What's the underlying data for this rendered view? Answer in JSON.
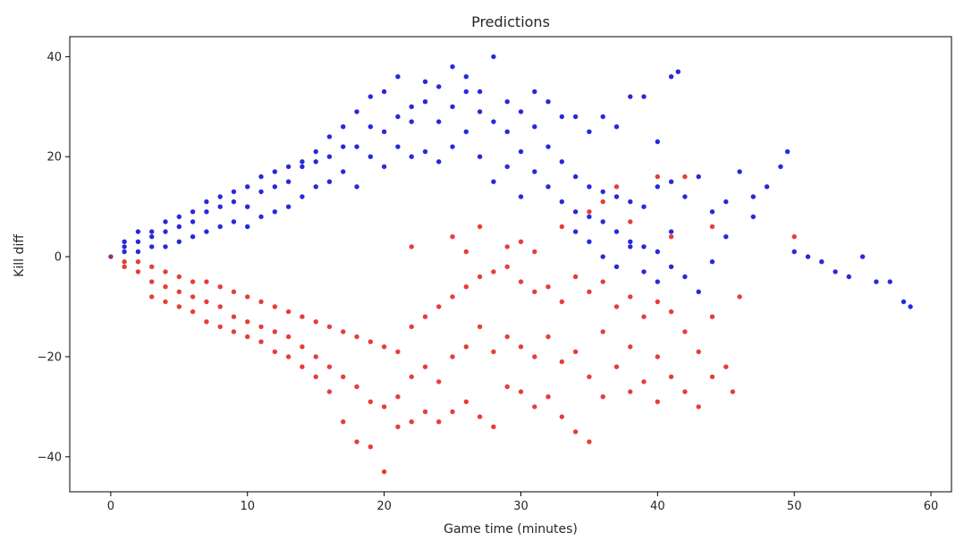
{
  "chart_data": {
    "type": "scatter",
    "title": "Predictions",
    "xlabel": "Game time (minutes)",
    "ylabel": "Kill diff",
    "xlim": [
      -3,
      61.5
    ],
    "ylim": [
      -47,
      44
    ],
    "xticks": [
      0,
      10,
      20,
      30,
      40,
      50,
      60
    ],
    "xtick_labels": [
      "0",
      "10",
      "20",
      "30",
      "40",
      "50",
      "60"
    ],
    "yticks": [
      -40,
      -20,
      0,
      20,
      40
    ],
    "ytick_labels": [
      "−40",
      "−20",
      "0",
      "20",
      "40"
    ],
    "grid": false,
    "legend": "none",
    "colors": {
      "positive": "#0a0ad6",
      "negative": "#e2231a",
      "origin": "#7a1a6a"
    },
    "marker_style": "filled circle, semi-transparent overlap",
    "series": [
      {
        "color": "#0a0ad6",
        "points": [
          [
            1,
            1
          ],
          [
            1,
            2
          ],
          [
            1,
            3
          ],
          [
            2,
            1
          ],
          [
            2,
            3
          ],
          [
            2,
            5
          ],
          [
            3,
            2
          ],
          [
            3,
            4
          ],
          [
            3,
            5
          ],
          [
            4,
            2
          ],
          [
            4,
            5
          ],
          [
            4,
            7
          ],
          [
            5,
            3
          ],
          [
            5,
            6
          ],
          [
            5,
            8
          ],
          [
            6,
            4
          ],
          [
            6,
            7
          ],
          [
            6,
            9
          ],
          [
            7,
            5
          ],
          [
            7,
            9
          ],
          [
            7,
            11
          ],
          [
            8,
            6
          ],
          [
            8,
            10
          ],
          [
            8,
            12
          ],
          [
            9,
            7
          ],
          [
            9,
            11
          ],
          [
            9,
            13
          ],
          [
            10,
            6
          ],
          [
            10,
            10
          ],
          [
            10,
            14
          ],
          [
            11,
            8
          ],
          [
            11,
            13
          ],
          [
            11,
            16
          ],
          [
            12,
            9
          ],
          [
            12,
            14
          ],
          [
            12,
            17
          ],
          [
            13,
            10
          ],
          [
            13,
            15
          ],
          [
            13,
            18
          ],
          [
            14,
            12
          ],
          [
            14,
            18
          ],
          [
            14,
            19
          ],
          [
            15,
            14
          ],
          [
            15,
            19
          ],
          [
            15,
            21
          ],
          [
            16,
            15
          ],
          [
            16,
            20
          ],
          [
            16,
            24
          ],
          [
            17,
            17
          ],
          [
            17,
            22
          ],
          [
            17,
            26
          ],
          [
            18,
            14
          ],
          [
            18,
            22
          ],
          [
            18,
            29
          ],
          [
            19,
            20
          ],
          [
            19,
            26
          ],
          [
            19,
            32
          ],
          [
            20,
            18
          ],
          [
            20,
            25
          ],
          [
            20,
            33
          ],
          [
            21,
            22
          ],
          [
            21,
            28
          ],
          [
            21,
            36
          ],
          [
            22,
            20
          ],
          [
            22,
            27
          ],
          [
            22,
            30
          ],
          [
            23,
            21
          ],
          [
            23,
            31
          ],
          [
            23,
            35
          ],
          [
            24,
            19
          ],
          [
            24,
            27
          ],
          [
            24,
            34
          ],
          [
            25,
            22
          ],
          [
            25,
            30
          ],
          [
            25,
            38
          ],
          [
            26,
            25
          ],
          [
            26,
            33
          ],
          [
            26,
            36
          ],
          [
            27,
            20
          ],
          [
            27,
            29
          ],
          [
            27,
            33
          ],
          [
            28,
            15
          ],
          [
            28,
            27
          ],
          [
            28,
            40
          ],
          [
            29,
            18
          ],
          [
            29,
            25
          ],
          [
            29,
            31
          ],
          [
            30,
            12
          ],
          [
            30,
            21
          ],
          [
            30,
            29
          ],
          [
            31,
            17
          ],
          [
            31,
            26
          ],
          [
            31,
            33
          ],
          [
            32,
            14
          ],
          [
            32,
            22
          ],
          [
            32,
            31
          ],
          [
            33,
            11
          ],
          [
            33,
            19
          ],
          [
            33,
            28
          ],
          [
            34,
            9
          ],
          [
            34,
            16
          ],
          [
            34,
            28
          ],
          [
            35,
            8
          ],
          [
            35,
            14
          ],
          [
            35,
            25
          ],
          [
            36,
            7
          ],
          [
            36,
            13
          ],
          [
            36,
            28
          ],
          [
            37,
            5
          ],
          [
            37,
            12
          ],
          [
            37,
            26
          ],
          [
            38,
            3
          ],
          [
            38,
            11
          ],
          [
            38,
            32
          ],
          [
            39,
            2
          ],
          [
            39,
            10
          ],
          [
            39,
            32
          ],
          [
            40,
            1
          ],
          [
            40,
            14
          ],
          [
            40,
            23
          ],
          [
            41,
            5
          ],
          [
            41,
            15
          ],
          [
            41,
            36
          ],
          [
            41.5,
            37
          ],
          [
            42,
            12
          ],
          [
            43,
            16
          ],
          [
            44,
            9
          ],
          [
            45,
            11
          ],
          [
            46,
            17
          ],
          [
            47,
            12
          ],
          [
            48,
            14
          ],
          [
            49,
            18
          ],
          [
            49.5,
            21
          ],
          [
            50,
            1
          ],
          [
            51,
            0
          ],
          [
            52,
            -1
          ],
          [
            53,
            -3
          ],
          [
            54,
            -4
          ],
          [
            55,
            0
          ],
          [
            56,
            -5
          ],
          [
            57,
            -5
          ],
          [
            58,
            -9
          ],
          [
            58.5,
            -10
          ],
          [
            47,
            8
          ],
          [
            45,
            4
          ],
          [
            44,
            -1
          ],
          [
            43,
            -7
          ],
          [
            42,
            -4
          ],
          [
            41,
            -2
          ],
          [
            40,
            -5
          ],
          [
            39,
            -3
          ],
          [
            38,
            2
          ],
          [
            37,
            -2
          ],
          [
            36,
            0
          ],
          [
            35,
            3
          ],
          [
            34,
            5
          ]
        ]
      },
      {
        "color": "#e2231a",
        "points": [
          [
            1,
            -1
          ],
          [
            1,
            -2
          ],
          [
            2,
            -1
          ],
          [
            2,
            -3
          ],
          [
            3,
            -2
          ],
          [
            3,
            -5
          ],
          [
            3,
            -8
          ],
          [
            4,
            -3
          ],
          [
            4,
            -6
          ],
          [
            4,
            -9
          ],
          [
            5,
            -4
          ],
          [
            5,
            -7
          ],
          [
            5,
            -10
          ],
          [
            6,
            -5
          ],
          [
            6,
            -8
          ],
          [
            6,
            -11
          ],
          [
            7,
            -5
          ],
          [
            7,
            -9
          ],
          [
            7,
            -13
          ],
          [
            8,
            -6
          ],
          [
            8,
            -10
          ],
          [
            8,
            -14
          ],
          [
            9,
            -7
          ],
          [
            9,
            -12
          ],
          [
            9,
            -15
          ],
          [
            10,
            -8
          ],
          [
            10,
            -13
          ],
          [
            10,
            -16
          ],
          [
            11,
            -9
          ],
          [
            11,
            -14
          ],
          [
            11,
            -17
          ],
          [
            12,
            -10
          ],
          [
            12,
            -15
          ],
          [
            12,
            -19
          ],
          [
            13,
            -11
          ],
          [
            13,
            -16
          ],
          [
            13,
            -20
          ],
          [
            14,
            -12
          ],
          [
            14,
            -18
          ],
          [
            14,
            -22
          ],
          [
            15,
            -13
          ],
          [
            15,
            -20
          ],
          [
            15,
            -24
          ],
          [
            16,
            -14
          ],
          [
            16,
            -22
          ],
          [
            16,
            -27
          ],
          [
            17,
            -15
          ],
          [
            17,
            -24
          ],
          [
            17,
            -33
          ],
          [
            18,
            -16
          ],
          [
            18,
            -26
          ],
          [
            18,
            -37
          ],
          [
            19,
            -17
          ],
          [
            19,
            -29
          ],
          [
            19,
            -38
          ],
          [
            20,
            -18
          ],
          [
            20,
            -30
          ],
          [
            20,
            -43
          ],
          [
            21,
            -19
          ],
          [
            21,
            -28
          ],
          [
            21,
            -34
          ],
          [
            22,
            -14
          ],
          [
            22,
            -24
          ],
          [
            22,
            -33
          ],
          [
            23,
            -12
          ],
          [
            23,
            -22
          ],
          [
            23,
            -31
          ],
          [
            24,
            -10
          ],
          [
            24,
            -25
          ],
          [
            24,
            -33
          ],
          [
            25,
            -8
          ],
          [
            25,
            -20
          ],
          [
            25,
            -31
          ],
          [
            26,
            -6
          ],
          [
            26,
            -18
          ],
          [
            26,
            -29
          ],
          [
            27,
            -4
          ],
          [
            27,
            -14
          ],
          [
            27,
            -32
          ],
          [
            28,
            -3
          ],
          [
            28,
            -19
          ],
          [
            28,
            -34
          ],
          [
            29,
            -2
          ],
          [
            29,
            -16
          ],
          [
            29,
            -26
          ],
          [
            30,
            -5
          ],
          [
            30,
            -18
          ],
          [
            30,
            -27
          ],
          [
            31,
            -7
          ],
          [
            31,
            -20
          ],
          [
            31,
            -30
          ],
          [
            32,
            -6
          ],
          [
            32,
            -16
          ],
          [
            32,
            -28
          ],
          [
            33,
            -9
          ],
          [
            33,
            -21
          ],
          [
            33,
            -32
          ],
          [
            34,
            -4
          ],
          [
            34,
            -19
          ],
          [
            34,
            -35
          ],
          [
            35,
            -7
          ],
          [
            35,
            -24
          ],
          [
            35,
            -37
          ],
          [
            36,
            -5
          ],
          [
            36,
            -15
          ],
          [
            36,
            -28
          ],
          [
            37,
            -10
          ],
          [
            37,
            -22
          ],
          [
            38,
            -8
          ],
          [
            38,
            -18
          ],
          [
            38,
            -27
          ],
          [
            39,
            -12
          ],
          [
            39,
            -25
          ],
          [
            40,
            -9
          ],
          [
            40,
            -20
          ],
          [
            40,
            -29
          ],
          [
            41,
            -11
          ],
          [
            41,
            -24
          ],
          [
            42,
            -15
          ],
          [
            42,
            -27
          ],
          [
            43,
            -19
          ],
          [
            43,
            -30
          ],
          [
            44,
            -12
          ],
          [
            44,
            -24
          ],
          [
            45,
            -22
          ],
          [
            45.5,
            -27
          ],
          [
            46,
            -8
          ],
          [
            35,
            9
          ],
          [
            37,
            14
          ],
          [
            40,
            16
          ],
          [
            42,
            16
          ],
          [
            50,
            4
          ],
          [
            30,
            3
          ],
          [
            27,
            6
          ],
          [
            25,
            4
          ],
          [
            22,
            2
          ],
          [
            33,
            6
          ],
          [
            36,
            11
          ],
          [
            38,
            7
          ],
          [
            41,
            4
          ],
          [
            44,
            6
          ],
          [
            31,
            1
          ],
          [
            29,
            2
          ],
          [
            26,
            1
          ]
        ]
      },
      {
        "color": "#7a1a6a",
        "points": [
          [
            0,
            0
          ]
        ]
      }
    ]
  }
}
